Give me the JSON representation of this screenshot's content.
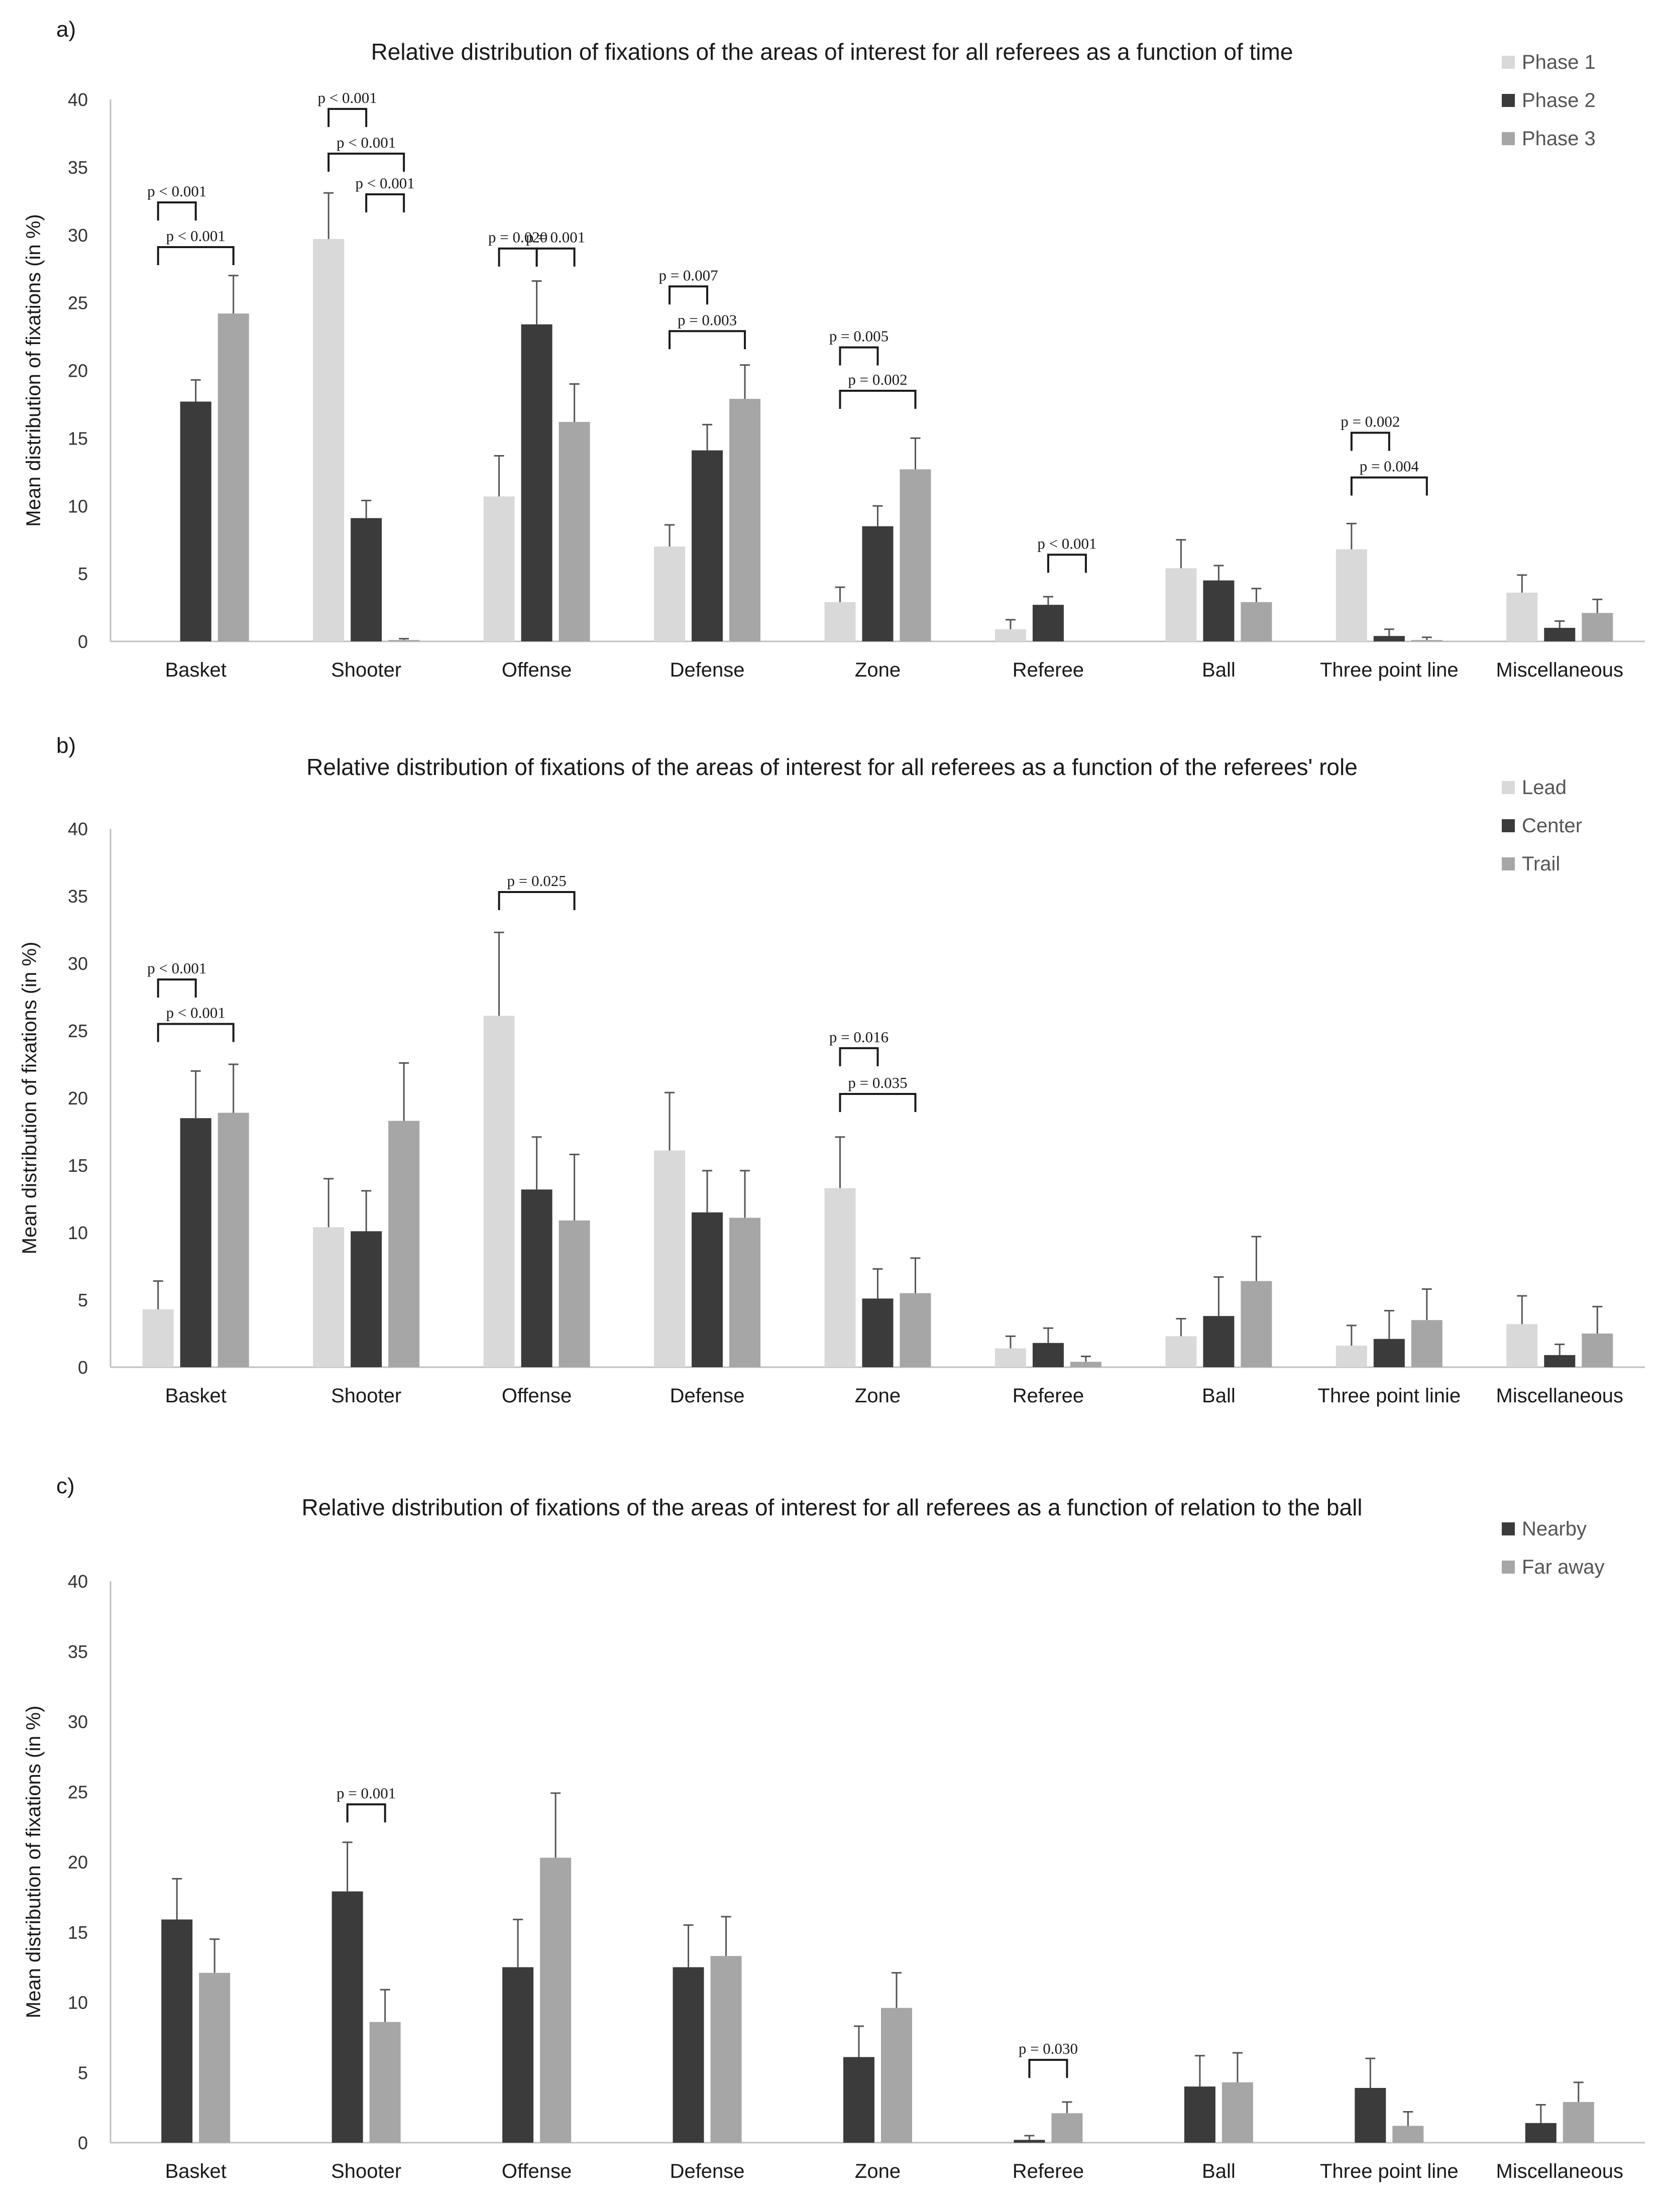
{
  "chart_data": [
    {
      "panel_label": "a)",
      "type": "bar",
      "title": "Relative distribution of fixations of the areas of interest for all referees as a function of time",
      "xlabel": "",
      "ylabel": "Mean distribution of fixations (in %)",
      "ylim": [
        0,
        40
      ],
      "yticks": [
        "0",
        "5",
        "10",
        "15",
        "20",
        "25",
        "30",
        "35",
        "40"
      ],
      "grid": false,
      "legend_position": "top-right",
      "categories": [
        "Basket",
        "Shooter",
        "Offense",
        "Defense",
        "Zone",
        "Referee",
        "Ball",
        "Three point line",
        "Miscellaneous"
      ],
      "series": [
        {
          "name": "Phase 1",
          "color": "#d9d9d9",
          "values": [
            0,
            29.7,
            10.7,
            7.0,
            2.9,
            0.9,
            5.4,
            6.8,
            3.6
          ],
          "errors": [
            0,
            3.4,
            3.0,
            1.6,
            1.1,
            0.7,
            2.1,
            1.9,
            1.3
          ]
        },
        {
          "name": "Phase 2",
          "color": "#3b3b3b",
          "values": [
            17.7,
            9.1,
            23.4,
            14.1,
            8.5,
            2.7,
            4.5,
            0.4,
            1.0
          ],
          "errors": [
            1.6,
            1.3,
            3.2,
            1.9,
            1.5,
            0.6,
            1.1,
            0.5,
            0.5
          ]
        },
        {
          "name": "Phase 3",
          "color": "#a6a6a6",
          "values": [
            24.2,
            0.1,
            16.2,
            17.9,
            12.7,
            0,
            2.9,
            0.1,
            2.1
          ],
          "errors": [
            2.8,
            0.1,
            2.8,
            2.5,
            2.3,
            0,
            1.0,
            0.2,
            1.0
          ]
        }
      ],
      "annotations": [
        {
          "cat": 0,
          "from": 0,
          "to": 1,
          "y": 32.4,
          "label": "p < 0.001"
        },
        {
          "cat": 0,
          "from": 0,
          "to": 2,
          "y": 29.1,
          "label": "p < 0.001"
        },
        {
          "cat": 1,
          "from": 0,
          "to": 1,
          "y": 39.3,
          "label": "p < 0.001"
        },
        {
          "cat": 1,
          "from": 0,
          "to": 2,
          "y": 36.0,
          "label": "p < 0.001"
        },
        {
          "cat": 1,
          "from": 1,
          "to": 2,
          "y": 33.0,
          "label": "p < 0.001"
        },
        {
          "cat": 2,
          "from": 0,
          "to": 1,
          "y": 29.0,
          "label": "p = 0.020"
        },
        {
          "cat": 2,
          "from": 1,
          "to": 2,
          "y": 29.0,
          "label": "p = 0.001"
        },
        {
          "cat": 3,
          "from": 0,
          "to": 1,
          "y": 26.2,
          "label": "p = 0.007"
        },
        {
          "cat": 3,
          "from": 0,
          "to": 2,
          "y": 22.9,
          "label": "p = 0.003"
        },
        {
          "cat": 4,
          "from": 0,
          "to": 1,
          "y": 21.7,
          "label": "p = 0.005"
        },
        {
          "cat": 4,
          "from": 0,
          "to": 2,
          "y": 18.5,
          "label": "p = 0.002"
        },
        {
          "cat": 5,
          "from": 1,
          "to": 2,
          "y": 6.4,
          "label": "p < 0.001"
        },
        {
          "cat": 7,
          "from": 0,
          "to": 1,
          "y": 15.4,
          "label": "p = 0.002"
        },
        {
          "cat": 7,
          "from": 0,
          "to": 2,
          "y": 12.1,
          "label": "p = 0.004"
        }
      ]
    },
    {
      "panel_label": "b)",
      "type": "bar",
      "title": "Relative distribution of fixations of the areas of interest for all referees as a function of the referees' role",
      "xlabel": "",
      "ylabel": "Mean distribution of fixations (in %)",
      "ylim": [
        0,
        40
      ],
      "yticks": [
        "0",
        "5",
        "10",
        "15",
        "20",
        "25",
        "30",
        "35",
        "40"
      ],
      "grid": false,
      "legend_position": "top-right",
      "categories": [
        "Basket",
        "Shooter",
        "Offense",
        "Defense",
        "Zone",
        "Referee",
        "Ball",
        "Three point linie",
        "Miscellaneous"
      ],
      "series": [
        {
          "name": "Lead",
          "color": "#d9d9d9",
          "values": [
            4.3,
            10.4,
            26.1,
            16.1,
            13.3,
            1.4,
            2.3,
            1.6,
            3.2
          ],
          "errors": [
            2.1,
            3.6,
            6.2,
            4.3,
            3.8,
            0.9,
            1.3,
            1.5,
            2.1
          ]
        },
        {
          "name": "Center",
          "color": "#3b3b3b",
          "values": [
            18.5,
            10.1,
            13.2,
            11.5,
            5.1,
            1.8,
            3.8,
            2.1,
            0.9
          ],
          "errors": [
            3.5,
            3.0,
            3.9,
            3.1,
            2.2,
            1.1,
            2.9,
            2.1,
            0.8
          ]
        },
        {
          "name": "Trail",
          "color": "#a6a6a6",
          "values": [
            18.9,
            18.3,
            10.9,
            11.1,
            5.5,
            0.4,
            6.4,
            3.5,
            2.5
          ],
          "errors": [
            3.6,
            4.3,
            4.9,
            3.5,
            2.6,
            0.4,
            3.3,
            2.3,
            2.0
          ]
        }
      ],
      "annotations": [
        {
          "cat": 0,
          "from": 0,
          "to": 1,
          "y": 28.8,
          "label": "p < 0.001"
        },
        {
          "cat": 0,
          "from": 0,
          "to": 2,
          "y": 25.5,
          "label": "p < 0.001"
        },
        {
          "cat": 2,
          "from": 0,
          "to": 2,
          "y": 35.3,
          "label": "p = 0.025"
        },
        {
          "cat": 4,
          "from": 0,
          "to": 1,
          "y": 23.7,
          "label": "p = 0.016"
        },
        {
          "cat": 4,
          "from": 0,
          "to": 2,
          "y": 20.3,
          "label": "p = 0.035"
        }
      ]
    },
    {
      "panel_label": "c)",
      "type": "bar",
      "title": "Relative distribution of fixations of the areas of interest for all referees as a function of relation to the ball",
      "xlabel": "",
      "ylabel": "Mean distribution of fixations (in %)",
      "ylim": [
        0,
        40
      ],
      "yticks": [
        "0",
        "5",
        "10",
        "15",
        "20",
        "25",
        "30",
        "35",
        "40"
      ],
      "grid": false,
      "legend_position": "top-right",
      "categories": [
        "Basket",
        "Shooter",
        "Offense",
        "Defense",
        "Zone",
        "Referee",
        "Ball",
        "Three point line",
        "Miscellaneous"
      ],
      "series": [
        {
          "name": "Nearby",
          "color": "#3b3b3b",
          "values": [
            15.9,
            17.9,
            12.5,
            12.5,
            6.1,
            0.2,
            4.0,
            3.9,
            1.4
          ],
          "errors": [
            2.9,
            3.5,
            3.4,
            3.0,
            2.2,
            0.3,
            2.2,
            2.1,
            1.3
          ]
        },
        {
          "name": "Far away",
          "color": "#a6a6a6",
          "values": [
            12.1,
            8.6,
            20.3,
            13.3,
            9.6,
            2.1,
            4.3,
            1.2,
            2.9
          ],
          "errors": [
            2.4,
            2.3,
            4.6,
            2.8,
            2.5,
            0.8,
            2.1,
            1.0,
            1.4
          ]
        }
      ],
      "annotations": [
        {
          "cat": 1,
          "from": 0,
          "to": 1,
          "y": 24.1,
          "label": "p = 0.001"
        },
        {
          "cat": 5,
          "from": 0,
          "to": 1,
          "y": 5.9,
          "label": "p = 0.030"
        }
      ]
    }
  ]
}
